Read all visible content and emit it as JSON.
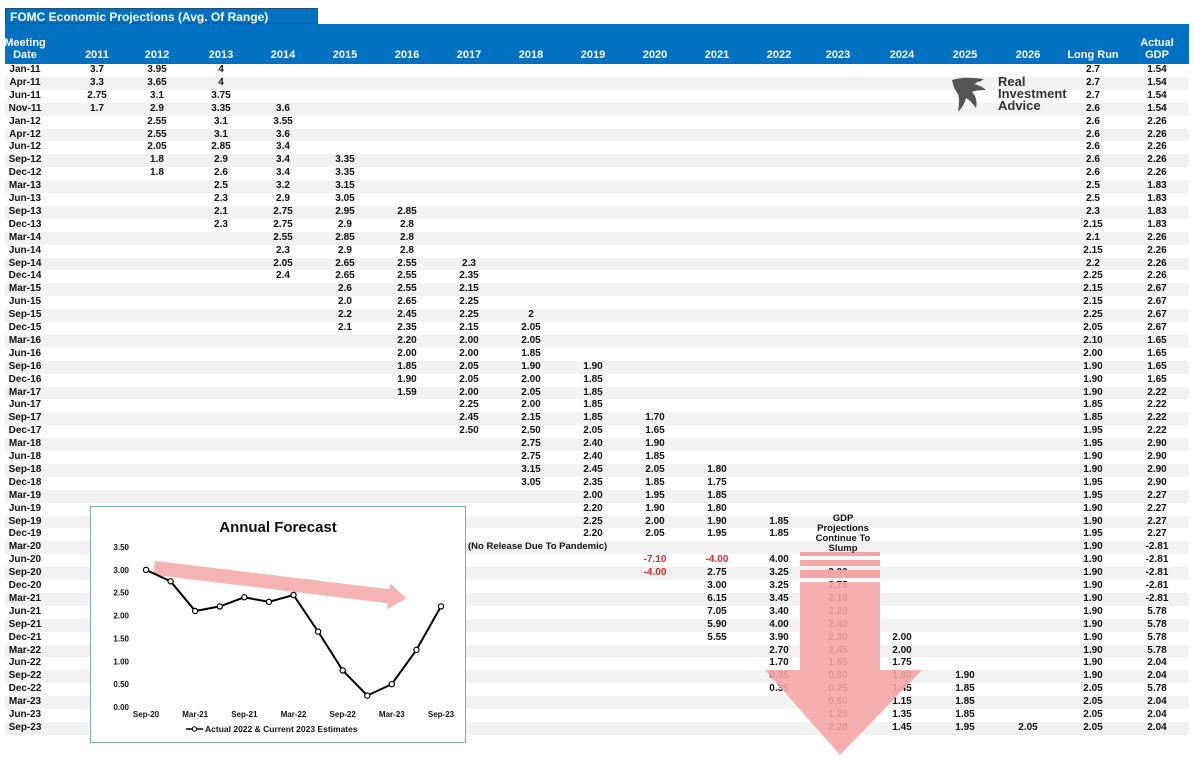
{
  "title": "FOMC Economic Projections (Avg. Of Range)",
  "columns": [
    "Meeting Date",
    "2011",
    "2012",
    "2013",
    "2014",
    "2015",
    "2016",
    "2017",
    "2018",
    "2019",
    "2020",
    "2021",
    "2022",
    "2023",
    "2024",
    "2025",
    "2026",
    "Long Run",
    "Actual GDP"
  ],
  "column_line1": [
    "Meeting",
    "",
    "",
    "",
    "",
    "",
    "",
    "",
    "",
    "",
    "",
    "",
    "",
    "",
    "",
    "",
    "",
    "",
    "Actual"
  ],
  "column_line2": [
    "Date",
    "2011",
    "2012",
    "2013",
    "2014",
    "2015",
    "2016",
    "2017",
    "2018",
    "2019",
    "2020",
    "2021",
    "2022",
    "2023",
    "2024",
    "2025",
    "2026",
    "Long Run",
    "GDP"
  ],
  "rows": [
    [
      "Jan-11",
      "3.7",
      "3.95",
      "4",
      "",
      "",
      "",
      "",
      "",
      "",
      "",
      "",
      "",
      "",
      "",
      "",
      "",
      "2.7",
      "1.54"
    ],
    [
      "Apr-11",
      "3.3",
      "3.65",
      "4",
      "",
      "",
      "",
      "",
      "",
      "",
      "",
      "",
      "",
      "",
      "",
      "",
      "",
      "2.7",
      "1.54"
    ],
    [
      "Jun-11",
      "2.75",
      "3.1",
      "3.75",
      "",
      "",
      "",
      "",
      "",
      "",
      "",
      "",
      "",
      "",
      "",
      "",
      "",
      "2.7",
      "1.54"
    ],
    [
      "Nov-11",
      "1.7",
      "2.9",
      "3.35",
      "3.6",
      "",
      "",
      "",
      "",
      "",
      "",
      "",
      "",
      "",
      "",
      "",
      "",
      "2.6",
      "1.54"
    ],
    [
      "Jan-12",
      "",
      "2.55",
      "3.1",
      "3.55",
      "",
      "",
      "",
      "",
      "",
      "",
      "",
      "",
      "",
      "",
      "",
      "",
      "2.6",
      "2.26"
    ],
    [
      "Apr-12",
      "",
      "2.55",
      "3.1",
      "3.6",
      "",
      "",
      "",
      "",
      "",
      "",
      "",
      "",
      "",
      "",
      "",
      "",
      "2.6",
      "2.26"
    ],
    [
      "Jun-12",
      "",
      "2.05",
      "2.85",
      "3.4",
      "",
      "",
      "",
      "",
      "",
      "",
      "",
      "",
      "",
      "",
      "",
      "",
      "2.6",
      "2.26"
    ],
    [
      "Sep-12",
      "",
      "1.8",
      "2.9",
      "3.4",
      "3.35",
      "",
      "",
      "",
      "",
      "",
      "",
      "",
      "",
      "",
      "",
      "",
      "2.6",
      "2.26"
    ],
    [
      "Dec-12",
      "",
      "1.8",
      "2.6",
      "3.4",
      "3.35",
      "",
      "",
      "",
      "",
      "",
      "",
      "",
      "",
      "",
      "",
      "",
      "2.6",
      "2.26"
    ],
    [
      "Mar-13",
      "",
      "",
      "2.5",
      "3.2",
      "3.15",
      "",
      "",
      "",
      "",
      "",
      "",
      "",
      "",
      "",
      "",
      "",
      "2.5",
      "1.83"
    ],
    [
      "Jun-13",
      "",
      "",
      "2.3",
      "2.9",
      "3.05",
      "",
      "",
      "",
      "",
      "",
      "",
      "",
      "",
      "",
      "",
      "",
      "2.5",
      "1.83"
    ],
    [
      "Sep-13",
      "",
      "",
      "2.1",
      "2.75",
      "2.95",
      "2.85",
      "",
      "",
      "",
      "",
      "",
      "",
      "",
      "",
      "",
      "",
      "2.3",
      "1.83"
    ],
    [
      "Dec-13",
      "",
      "",
      "2.3",
      "2.75",
      "2.9",
      "2.8",
      "",
      "",
      "",
      "",
      "",
      "",
      "",
      "",
      "",
      "",
      "2.15",
      "1.83"
    ],
    [
      "Mar-14",
      "",
      "",
      "",
      "2.55",
      "2.85",
      "2.8",
      "",
      "",
      "",
      "",
      "",
      "",
      "",
      "",
      "",
      "",
      "2.1",
      "2.26"
    ],
    [
      "Jun-14",
      "",
      "",
      "",
      "2.3",
      "2.9",
      "2.8",
      "",
      "",
      "",
      "",
      "",
      "",
      "",
      "",
      "",
      "",
      "2.15",
      "2.26"
    ],
    [
      "Sep-14",
      "",
      "",
      "",
      "2.05",
      "2.65",
      "2.55",
      "2.3",
      "",
      "",
      "",
      "",
      "",
      "",
      "",
      "",
      "",
      "2.2",
      "2.26"
    ],
    [
      "Dec-14",
      "",
      "",
      "",
      "2.4",
      "2.65",
      "2.55",
      "2.35",
      "",
      "",
      "",
      "",
      "",
      "",
      "",
      "",
      "",
      "2.25",
      "2.26"
    ],
    [
      "Mar-15",
      "",
      "",
      "",
      "",
      "2.6",
      "2.55",
      "2.15",
      "",
      "",
      "",
      "",
      "",
      "",
      "",
      "",
      "",
      "2.15",
      "2.67"
    ],
    [
      "Jun-15",
      "",
      "",
      "",
      "",
      "2.0",
      "2.65",
      "2.25",
      "",
      "",
      "",
      "",
      "",
      "",
      "",
      "",
      "",
      "2.15",
      "2.67"
    ],
    [
      "Sep-15",
      "",
      "",
      "",
      "",
      "2.2",
      "2.45",
      "2.25",
      "2",
      "",
      "",
      "",
      "",
      "",
      "",
      "",
      "",
      "2.25",
      "2.67"
    ],
    [
      "Dec-15",
      "",
      "",
      "",
      "",
      "2.1",
      "2.35",
      "2.15",
      "2.05",
      "",
      "",
      "",
      "",
      "",
      "",
      "",
      "",
      "2.05",
      "2.67"
    ],
    [
      "Mar-16",
      "",
      "",
      "",
      "",
      "",
      "2.20",
      "2.00",
      "2.05",
      "",
      "",
      "",
      "",
      "",
      "",
      "",
      "",
      "2.10",
      "1.65"
    ],
    [
      "Jun-16",
      "",
      "",
      "",
      "",
      "",
      "2.00",
      "2.00",
      "1.85",
      "",
      "",
      "",
      "",
      "",
      "",
      "",
      "",
      "2.00",
      "1.65"
    ],
    [
      "Sep-16",
      "",
      "",
      "",
      "",
      "",
      "1.85",
      "2.05",
      "1.90",
      "1.90",
      "",
      "",
      "",
      "",
      "",
      "",
      "",
      "1.90",
      "1.65"
    ],
    [
      "Dec-16",
      "",
      "",
      "",
      "",
      "",
      "1.90",
      "2.05",
      "2.00",
      "1.85",
      "",
      "",
      "",
      "",
      "",
      "",
      "",
      "1.90",
      "1.65"
    ],
    [
      "Mar-17",
      "",
      "",
      "",
      "",
      "",
      "1.59",
      "2.00",
      "2.05",
      "1.85",
      "",
      "",
      "",
      "",
      "",
      "",
      "",
      "1.90",
      "2.22"
    ],
    [
      "Jun-17",
      "",
      "",
      "",
      "",
      "",
      "",
      "2.25",
      "2.00",
      "1.85",
      "",
      "",
      "",
      "",
      "",
      "",
      "",
      "1.85",
      "2.22"
    ],
    [
      "Sep-17",
      "",
      "",
      "",
      "",
      "",
      "",
      "2.45",
      "2.15",
      "1.85",
      "1.70",
      "",
      "",
      "",
      "",
      "",
      "",
      "1.85",
      "2.22"
    ],
    [
      "Dec-17",
      "",
      "",
      "",
      "",
      "",
      "",
      "2.50",
      "2.50",
      "2.05",
      "1.65",
      "",
      "",
      "",
      "",
      "",
      "",
      "1.95",
      "2.22"
    ],
    [
      "Mar-18",
      "",
      "",
      "",
      "",
      "",
      "",
      "",
      "2.75",
      "2.40",
      "1.90",
      "",
      "",
      "",
      "",
      "",
      "",
      "1.95",
      "2.90"
    ],
    [
      "Jun-18",
      "",
      "",
      "",
      "",
      "",
      "",
      "",
      "2.75",
      "2.40",
      "1.85",
      "",
      "",
      "",
      "",
      "",
      "",
      "1.90",
      "2.90"
    ],
    [
      "Sep-18",
      "",
      "",
      "",
      "",
      "",
      "",
      "",
      "3.15",
      "2.45",
      "2.05",
      "1.80",
      "",
      "",
      "",
      "",
      "",
      "1.90",
      "2.90"
    ],
    [
      "Dec-18",
      "",
      "",
      "",
      "",
      "",
      "",
      "",
      "3.05",
      "2.35",
      "1.85",
      "1.75",
      "",
      "",
      "",
      "",
      "",
      "1.95",
      "2.90"
    ],
    [
      "Mar-19",
      "",
      "",
      "",
      "",
      "",
      "",
      "",
      "",
      "2.00",
      "1.95",
      "1.85",
      "",
      "",
      "",
      "",
      "",
      "1.95",
      "2.27"
    ],
    [
      "Jun-19",
      "",
      "",
      "",
      "",
      "",
      "",
      "",
      "",
      "2.20",
      "1.90",
      "1.80",
      "",
      "",
      "",
      "",
      "",
      "1.90",
      "2.27"
    ],
    [
      "Sep-19",
      "",
      "",
      "",
      "",
      "",
      "",
      "",
      "",
      "2.25",
      "2.00",
      "1.90",
      "1.85",
      "",
      "",
      "",
      "",
      "1.90",
      "2.27"
    ],
    [
      "Dec-19",
      "",
      "",
      "",
      "",
      "",
      "",
      "",
      "",
      "2.20",
      "2.05",
      "1.95",
      "1.85",
      "",
      "",
      "",
      "",
      "1.95",
      "2.27"
    ],
    [
      "Mar-20",
      "",
      "",
      "",
      "",
      "",
      "",
      "",
      "",
      "",
      "",
      "",
      "",
      "",
      "",
      "",
      "",
      "1.90",
      "-2.81"
    ],
    [
      "Jun-20",
      "",
      "",
      "",
      "",
      "",
      "",
      "",
      "",
      "",
      "-7.10",
      "-4.00",
      "4.00",
      "",
      "",
      "",
      "",
      "1.90",
      "-2.81"
    ],
    [
      "Sep-20",
      "",
      "",
      "",
      "",
      "",
      "",
      "",
      "",
      "",
      "-4.00",
      "2.75",
      "3.25",
      "3.00",
      "",
      "",
      "",
      "1.90",
      "-2.81"
    ],
    [
      "Dec-20",
      "",
      "",
      "",
      "",
      "",
      "",
      "",
      "",
      "",
      "",
      "3.00",
      "3.25",
      "2.75",
      "",
      "",
      "",
      "1.90",
      "-2.81"
    ],
    [
      "Mar-21",
      "",
      "",
      "",
      "",
      "",
      "",
      "",
      "",
      "",
      "",
      "6.15",
      "3.45",
      "2.10",
      "",
      "",
      "",
      "1.90",
      "-2.81"
    ],
    [
      "Jun-21",
      "",
      "",
      "",
      "",
      "",
      "",
      "",
      "",
      "",
      "",
      "7.05",
      "3.40",
      "2.20",
      "",
      "",
      "",
      "1.90",
      "5.78"
    ],
    [
      "Sep-21",
      "",
      "",
      "",
      "",
      "",
      "",
      "",
      "",
      "",
      "",
      "5.90",
      "4.00",
      "2.40",
      "",
      "",
      "",
      "1.90",
      "5.78"
    ],
    [
      "Dec-21",
      "",
      "",
      "",
      "",
      "",
      "",
      "",
      "",
      "",
      "",
      "5.55",
      "3.90",
      "2.30",
      "2.00",
      "",
      "",
      "1.90",
      "5.78"
    ],
    [
      "Mar-22",
      "",
      "",
      "",
      "",
      "",
      "",
      "",
      "",
      "",
      "",
      "",
      "2.70",
      "2.45",
      "2.00",
      "",
      "",
      "1.90",
      "5.78"
    ],
    [
      "Jun-22",
      "",
      "",
      "",
      "",
      "",
      "",
      "",
      "",
      "",
      "",
      "",
      "1.70",
      "1.65",
      "1.75",
      "",
      "",
      "1.90",
      "2.04"
    ],
    [
      "Sep-22",
      "",
      "",
      "",
      "",
      "",
      "",
      "",
      "",
      "",
      "",
      "",
      "0.35",
      "0.80",
      "1.80",
      "1.90",
      "",
      "1.90",
      "2.04"
    ],
    [
      "Dec-22",
      "",
      "",
      "",
      "",
      "",
      "",
      "",
      "",
      "",
      "",
      "",
      "0.35",
      "0.25",
      "1.45",
      "1.85",
      "",
      "2.05",
      "5.78"
    ],
    [
      "Mar-23",
      "",
      "",
      "",
      "",
      "",
      "",
      "",
      "",
      "",
      "",
      "",
      "",
      "0.50",
      "1.15",
      "1.85",
      "",
      "2.05",
      "2.04"
    ],
    [
      "Jun-23",
      "",
      "",
      "",
      "",
      "",
      "",
      "",
      "",
      "",
      "",
      "",
      "",
      "1.25",
      "1.35",
      "1.85",
      "",
      "2.05",
      "2.04"
    ],
    [
      "Sep-23",
      "",
      "",
      "",
      "",
      "",
      "",
      "",
      "",
      "",
      "",
      "",
      "",
      "2.20",
      "1.45",
      "1.95",
      "2.05",
      "2.05",
      "2.04"
    ]
  ],
  "red_cells": [
    [
      38,
      10
    ],
    [
      38,
      11
    ],
    [
      39,
      10
    ]
  ],
  "pandemic_note": "(No Release Due To Pandemic)",
  "gdp_note_lines": [
    "GDP",
    "Projections",
    "Continue To",
    "Slump"
  ],
  "logo_lines": [
    "Real",
    "Investment",
    "Advice"
  ],
  "colors": {
    "header": "#0070c0",
    "red": "#d92b2b",
    "arrow": "#f4a6a6",
    "line": "#000000"
  },
  "chart_data": {
    "type": "line",
    "title": "Annual Forecast",
    "x": [
      "Sep-20",
      "Dec-20",
      "Mar-21",
      "Jun-21",
      "Sep-21",
      "Dec-21",
      "Mar-22",
      "Jun-22",
      "Sep-22",
      "Dec-22",
      "Mar-23",
      "Jun-23",
      "Sep-23"
    ],
    "tick_labels": [
      "Sep-20",
      "Mar-21",
      "Sep-21",
      "Mar-22",
      "Sep-22",
      "Mar-23",
      "Sep-23"
    ],
    "series": [
      {
        "name": "Actual 2022 & Current 2023 Estimates",
        "values": [
          3.0,
          2.75,
          2.1,
          2.2,
          2.4,
          2.3,
          2.45,
          1.65,
          0.8,
          0.25,
          0.5,
          1.25,
          2.2
        ]
      }
    ],
    "ylim": [
      0,
      3.5
    ],
    "yticks": [
      "0.00",
      "0.50",
      "1.00",
      "1.50",
      "2.00",
      "2.50",
      "3.00",
      "3.50"
    ],
    "legend_placement": "bottom",
    "trend_arrow": "red, pointing right-downward"
  }
}
